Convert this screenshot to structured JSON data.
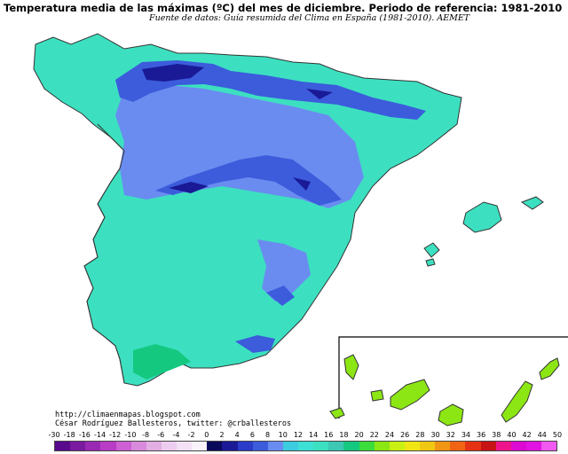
{
  "title": "Temperatura media de las máximas (ºC) del mes de diciembre. Periodo de referencia: 1981-2010",
  "source": "Fuente de datos: Guía resumida del Clima en España (1981-2010). AEMET",
  "credits": {
    "blog": "http://climaenmapas.blogspot.com",
    "author": "César Rodríguez Ballesteros, twitter: @crballesteros"
  },
  "legend": {
    "labels": [
      "-30",
      "-18",
      "-16",
      "-14",
      "-12",
      "-10",
      "-8",
      "-6",
      "-4",
      "-2",
      "0",
      "2",
      "4",
      "6",
      "8",
      "10",
      "12",
      "14",
      "16",
      "18",
      "20",
      "22",
      "24",
      "26",
      "28",
      "30",
      "32",
      "34",
      "36",
      "38",
      "40",
      "42",
      "44",
      "50"
    ],
    "colors": [
      "#5a0a8c",
      "#7a1aa0",
      "#9a2ab4",
      "#b83cc6",
      "#cc60d4",
      "#d88adc",
      "#e2aee4",
      "#eccdef",
      "#f3e1f5",
      "#f9f2fa",
      "#0a0a5a",
      "#1a1a96",
      "#2a3cc8",
      "#3c5cdc",
      "#6a8cf0",
      "#3ccce0",
      "#3ce0d4",
      "#3ce0c0",
      "#3cc8b4",
      "#14c880",
      "#3cdc3c",
      "#8ce614",
      "#c8f014",
      "#f0e614",
      "#f0c814",
      "#f09614",
      "#f06414",
      "#e63214",
      "#c81414",
      "#f0148c",
      "#dc0ad2",
      "#e214e2",
      "#f05af0"
    ],
    "unit": "ºC"
  },
  "map": {
    "region": "España peninsular, Baleares y Canarias",
    "colors": {
      "sea": "#ffffff",
      "base": "#3ce0c0",
      "mid": "#6a8cf0",
      "cold": "#3c5cdc",
      "coldest": "#1a1a96",
      "warm": "#14c880",
      "warmest": "#8ce614",
      "border": "#333333"
    }
  }
}
